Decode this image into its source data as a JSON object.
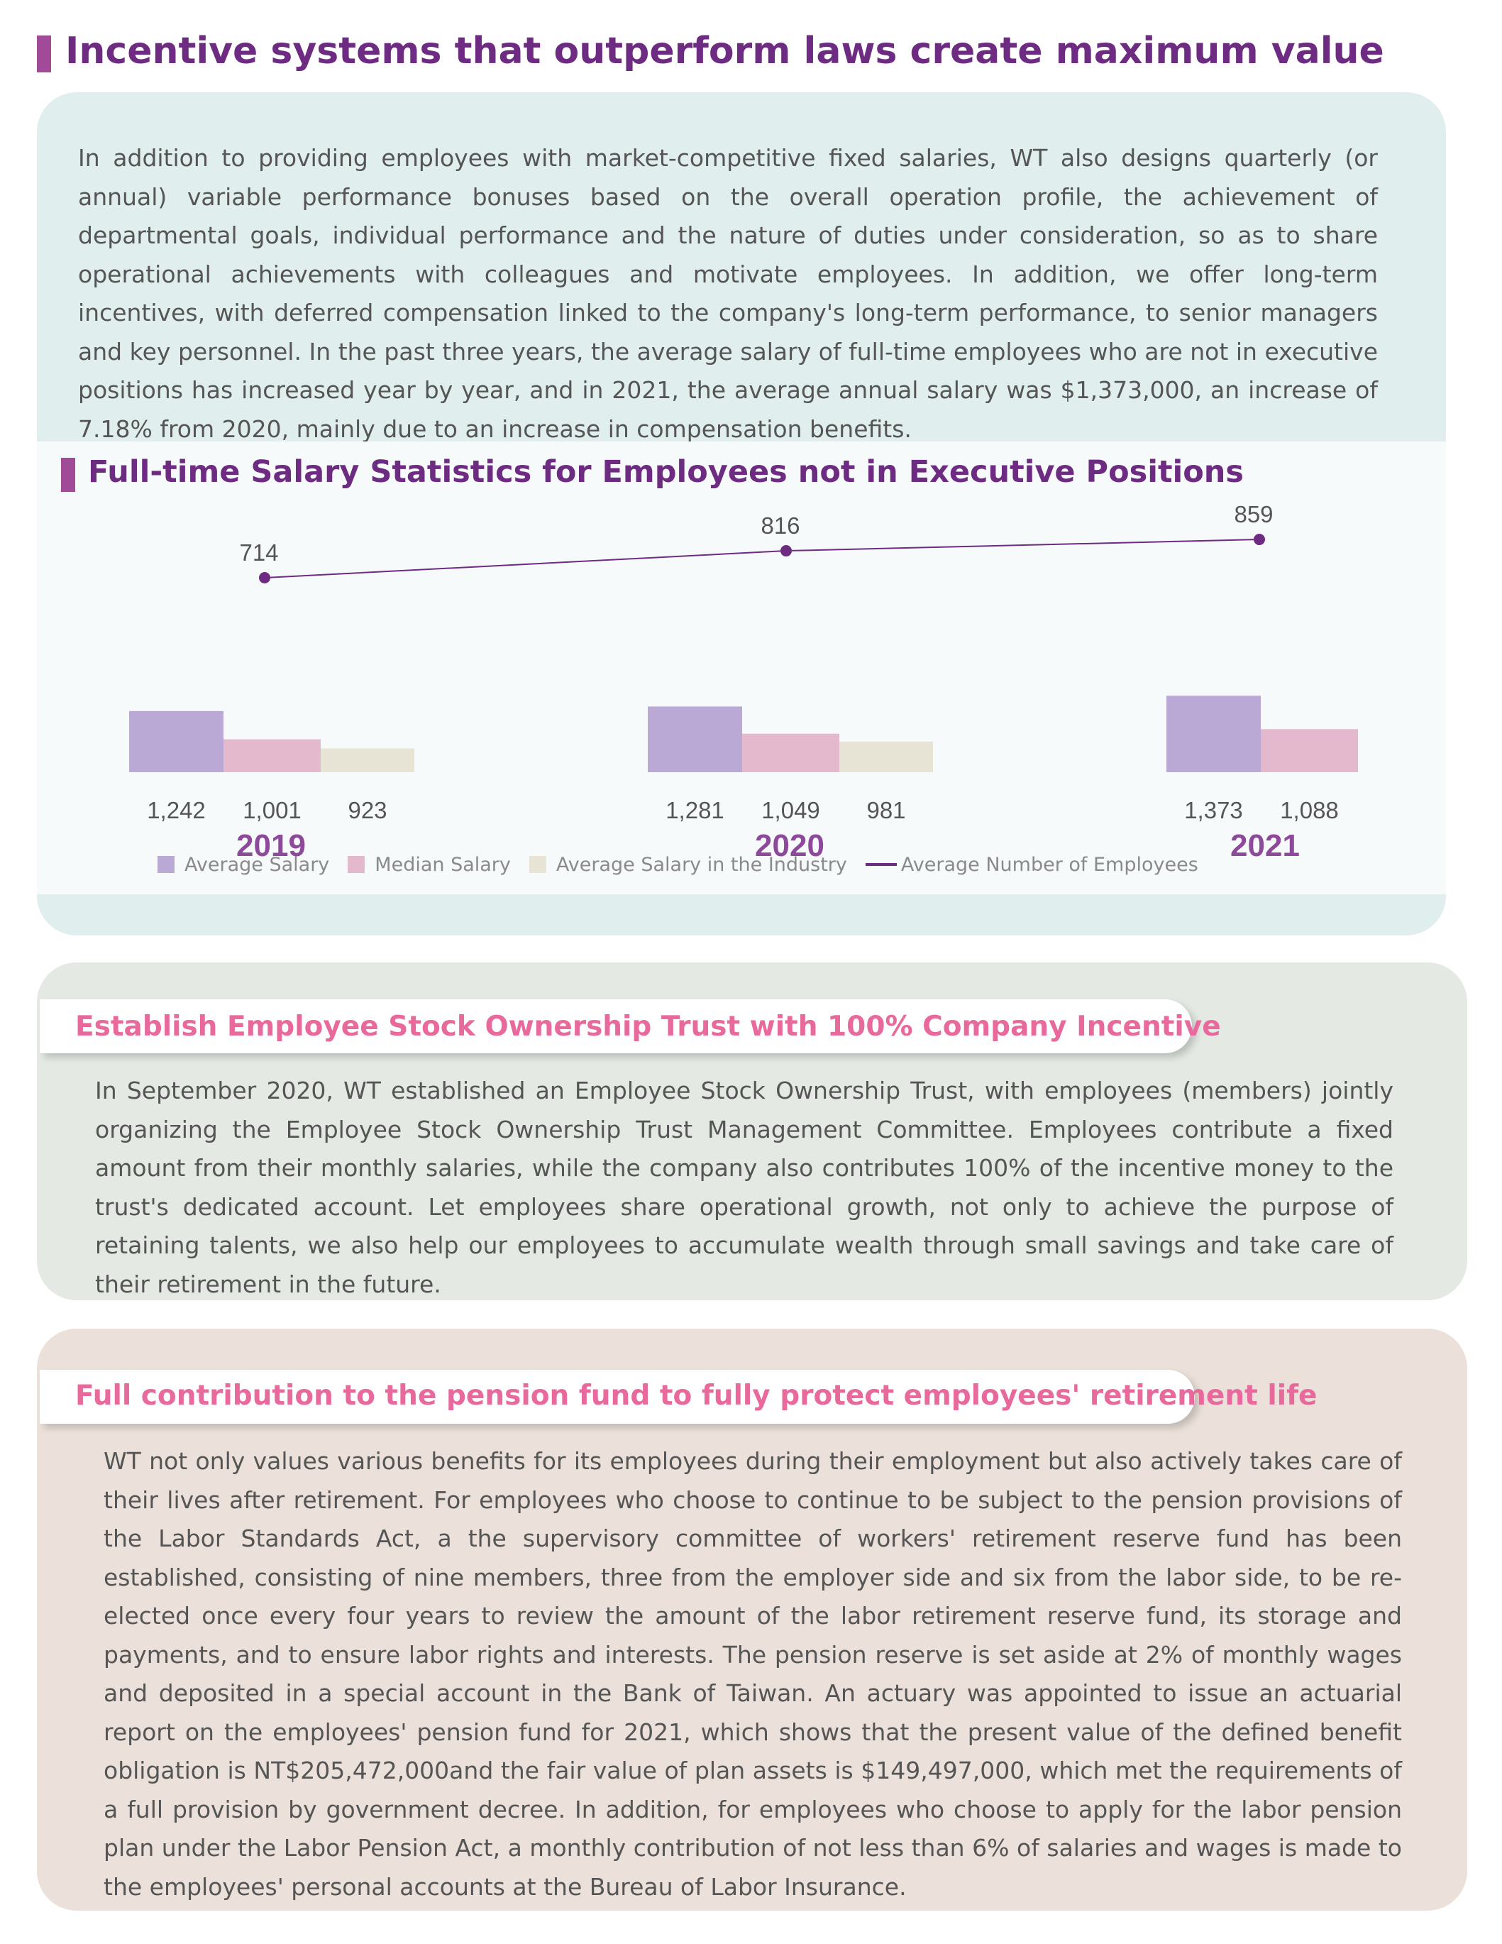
{
  "page": {
    "title": "Incentive systems that outperform laws create maximum value",
    "intro": "In addition to providing employees with market-competitive fixed salaries, WT also designs quarterly (or annual) variable performance bonuses based on the overall operation profile, the achievement of departmental goals, individual performance and the nature of duties under consideration, so as to share operational achievements with colleagues and motivate employees. In addition, we offer long-term incentives, with deferred compensation linked to the company's long-term performance, to senior managers and key personnel. In the past three years, the average salary of full-time employees who are not in executive positions has increased year by year, and in 2021, the average annual salary was $1,373,000, an increase of 7.18% from 2020, mainly due to an increase in compensation benefits."
  },
  "colors": {
    "accent": "#6d2b82",
    "average_salary": "#bba9d5",
    "median_salary": "#e5b9cd",
    "industry_salary": "#e8e4d5",
    "tab_heading": "#e8699b"
  },
  "chart_data": {
    "type": "bar",
    "title": "Full-time Salary Statistics for Employees not in Executive Positions",
    "categories": [
      "2019",
      "2020",
      "2021"
    ],
    "series": [
      {
        "name": "Average Salary",
        "values": [
          1242,
          1281,
          1373
        ],
        "labels": [
          "1,242",
          "1,281",
          "1,373"
        ]
      },
      {
        "name": "Median Salary",
        "values": [
          1001,
          1049,
          1088
        ],
        "labels": [
          "1,001",
          "1,049",
          "1,088"
        ]
      },
      {
        "name": "Average Salary in the Industry",
        "values": [
          923,
          981,
          null
        ],
        "labels": [
          "923",
          "981",
          ""
        ]
      }
    ],
    "line_series": {
      "name": "Average Number of Employees",
      "values": [
        714,
        816,
        859
      ],
      "labels": [
        "714",
        "816",
        "859"
      ]
    },
    "legend_position": "bottom",
    "grid": false
  },
  "esot": {
    "heading": "Establish Employee Stock Ownership Trust with 100% Company Incentive",
    "body": "In September 2020, WT established an Employee Stock Ownership Trust, with employees (members) jointly organizing the  Employee Stock Ownership Trust Management Committee. Employees contribute a fixed amount from their monthly salaries, while the company also contributes 100% of the incentive money to the trust's dedicated account. Let employees share operational growth, not only to achieve the purpose of retaining talents, we also help our employees to accumulate wealth through small savings and take care of their retirement in the future."
  },
  "pension": {
    "heading": "Full contribution to the pension fund to fully protect employees' retirement life",
    "body": "WT not only values various benefits for its employees during their employment but also actively takes care of their lives after retirement. For employees who choose to continue to be subject to the pension provisions of the Labor Standards Act, a the supervisory committee of workers' retirement reserve fund has been established, consisting of nine members, three from the employer side and six from the labor side, to be re-elected once every four years to review the amount of the labor retirement reserve fund, its storage and payments, and to ensure labor rights and interests. The pension reserve is set aside at 2% of monthly wages and deposited in a special account in the Bank of Taiwan. An actuary was appointed to issue an actuarial report on the employees' pension fund for 2021, which shows that the present value of the defined benefit obligation is NT$205,472,000and the fair value of plan assets is $149,497,000, which met the requirements of a full provision by government decree.  In addition, for employees who choose to apply for the labor pension plan under the Labor Pension Act, a monthly contribution of not less than 6% of salaries and wages is made to the employees' personal accounts at the Bureau of Labor Insurance."
  }
}
